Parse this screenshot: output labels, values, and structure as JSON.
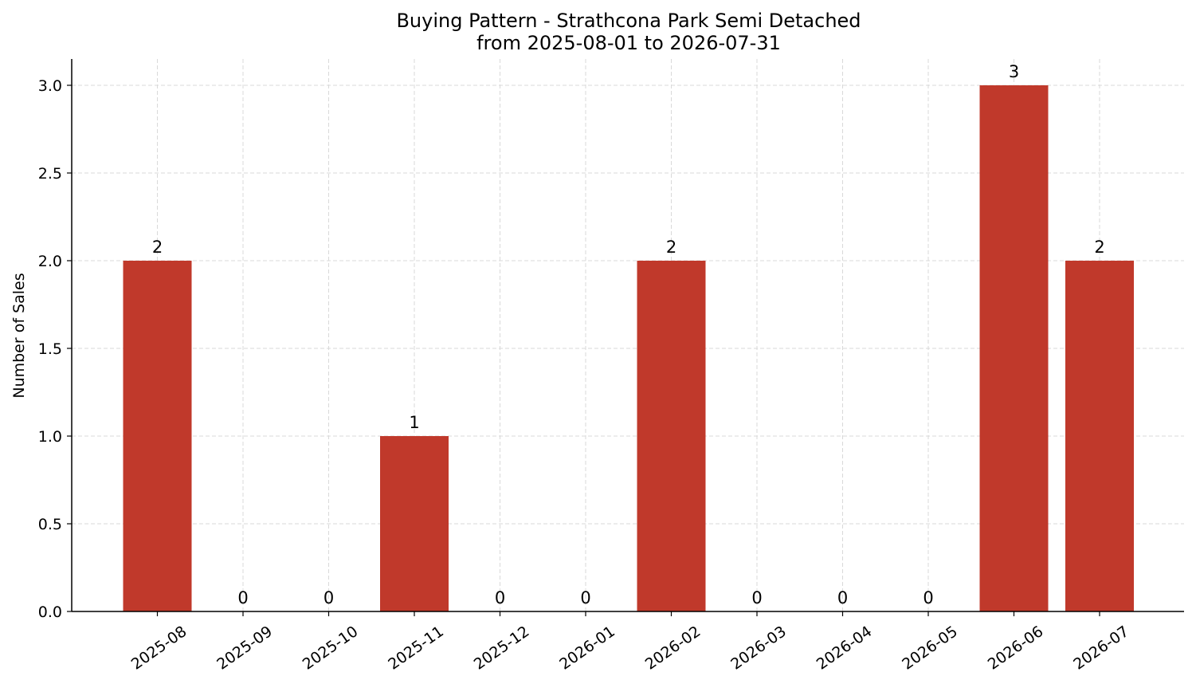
{
  "chart_data": {
    "type": "bar",
    "title": "Buying Pattern - Strathcona Park Semi Detached",
    "subtitle": "from 2025-08-01 to 2026-07-31",
    "xlabel": "",
    "ylabel": "Number of Sales",
    "categories": [
      "2025-08",
      "2025-09",
      "2025-10",
      "2025-11",
      "2025-12",
      "2026-01",
      "2026-02",
      "2026-03",
      "2026-04",
      "2026-05",
      "2026-06",
      "2026-07"
    ],
    "values": [
      2,
      0,
      0,
      1,
      0,
      0,
      2,
      0,
      0,
      0,
      3,
      2
    ],
    "data_labels": [
      "2",
      "0",
      "0",
      "1",
      "0",
      "0",
      "2",
      "0",
      "0",
      "0",
      "3",
      "2"
    ],
    "yticks": [
      "0.0",
      "0.5",
      "1.0",
      "1.5",
      "2.0",
      "2.5",
      "3.0"
    ],
    "ylim": [
      0,
      3.15
    ],
    "grid": true,
    "bar_color": "#c0392b",
    "grid_color": "#d9d9d9"
  }
}
